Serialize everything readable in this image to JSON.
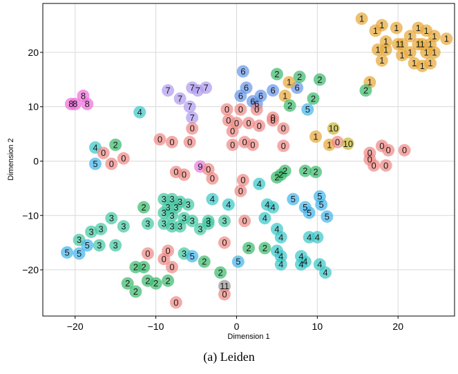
{
  "caption": "(a) Leiden",
  "chart_data": {
    "type": "scatter",
    "xlabel": "Dimension 1",
    "ylabel": "Dimension 2",
    "xlim": [
      -24,
      27
    ],
    "ylim": [
      -28.5,
      29
    ],
    "xticks": [
      -20,
      -10,
      0,
      10,
      20
    ],
    "yticks": [
      -20,
      -10,
      0,
      10,
      20
    ],
    "x_tick_labels": [
      "−20",
      "−10",
      "0",
      "10",
      "20"
    ],
    "y_tick_labels": [
      "−20",
      "−10",
      "0",
      "10",
      "20"
    ],
    "grid": true,
    "legend": "none",
    "cluster_colors": {
      "0": "#ef8a87",
      "1": "#e6a93a",
      "2": "#3dbb6d",
      "3": "#45c9a4",
      "4": "#3cc7c9",
      "5": "#45b6ea",
      "6": "#6a98ea",
      "7": "#b29cf0",
      "8": "#ee6fd9",
      "9": "#e77ce0",
      "10": "#c9b83a"
    },
    "points": [
      {
        "x": 15.5,
        "y": 26.2,
        "label": "1"
      },
      {
        "x": 17.2,
        "y": 24.0,
        "label": "1"
      },
      {
        "x": 18.0,
        "y": 25.0,
        "label": "1"
      },
      {
        "x": 19.8,
        "y": 24.5,
        "label": "1"
      },
      {
        "x": 22.5,
        "y": 24.5,
        "label": "1"
      },
      {
        "x": 23.5,
        "y": 24.0,
        "label": "1"
      },
      {
        "x": 21.5,
        "y": 23.0,
        "label": "1"
      },
      {
        "x": 24.5,
        "y": 23.0,
        "label": "1"
      },
      {
        "x": 26.0,
        "y": 22.5,
        "label": "1"
      },
      {
        "x": 18.5,
        "y": 22.0,
        "label": "1"
      },
      {
        "x": 20.0,
        "y": 21.5,
        "label": "1"
      },
      {
        "x": 20.5,
        "y": 21.5,
        "label": "1"
      },
      {
        "x": 22.5,
        "y": 21.5,
        "label": "1"
      },
      {
        "x": 23.0,
        "y": 21.5,
        "label": "1"
      },
      {
        "x": 24.0,
        "y": 21.5,
        "label": "1"
      },
      {
        "x": 17.5,
        "y": 20.5,
        "label": "1"
      },
      {
        "x": 18.5,
        "y": 20.5,
        "label": "1"
      },
      {
        "x": 21.5,
        "y": 20.0,
        "label": "1"
      },
      {
        "x": 23.5,
        "y": 20.0,
        "label": "1"
      },
      {
        "x": 24.5,
        "y": 20.0,
        "label": "1"
      },
      {
        "x": 20.5,
        "y": 19.5,
        "label": "1"
      },
      {
        "x": 18.0,
        "y": 18.5,
        "label": "1"
      },
      {
        "x": 22.0,
        "y": 18.0,
        "label": "1"
      },
      {
        "x": 23.0,
        "y": 17.5,
        "label": "1"
      },
      {
        "x": 24.0,
        "y": 18.0,
        "label": "1"
      },
      {
        "x": 16.5,
        "y": 14.5,
        "label": "1"
      },
      {
        "x": 0.8,
        "y": 16.5,
        "label": "6"
      },
      {
        "x": 1.2,
        "y": 13.5,
        "label": "6"
      },
      {
        "x": 0.5,
        "y": 12.0,
        "label": "6"
      },
      {
        "x": 2.5,
        "y": 10.5,
        "label": "6"
      },
      {
        "x": 3.0,
        "y": 12.0,
        "label": "6"
      },
      {
        "x": 4.5,
        "y": 13.0,
        "label": "6"
      },
      {
        "x": 7.5,
        "y": 13.5,
        "label": "6"
      },
      {
        "x": 2.0,
        "y": 11.0,
        "label": "6"
      },
      {
        "x": 8.8,
        "y": 9.5,
        "label": "5"
      },
      {
        "x": 6.0,
        "y": 12.0,
        "label": "1"
      },
      {
        "x": 5.0,
        "y": 16.0,
        "label": "2"
      },
      {
        "x": 7.8,
        "y": 15.5,
        "label": "2"
      },
      {
        "x": 10.3,
        "y": 15.0,
        "label": "2"
      },
      {
        "x": 6.5,
        "y": 14.5,
        "label": "1"
      },
      {
        "x": 9.5,
        "y": 11.5,
        "label": "2"
      },
      {
        "x": 6.6,
        "y": 10.2,
        "label": "2"
      },
      {
        "x": 16.0,
        "y": 13.0,
        "label": "2"
      },
      {
        "x": -20.5,
        "y": 10.5,
        "label": "8"
      },
      {
        "x": -20.0,
        "y": 10.5,
        "label": "8"
      },
      {
        "x": -19.0,
        "y": 12.0,
        "label": "8"
      },
      {
        "x": -18.5,
        "y": 10.5,
        "label": "8"
      },
      {
        "x": -12.0,
        "y": 9.0,
        "label": "4"
      },
      {
        "x": -8.5,
        "y": 13.0,
        "label": "7"
      },
      {
        "x": -5.5,
        "y": 13.5,
        "label": "7"
      },
      {
        "x": -4.8,
        "y": 13.0,
        "label": "7"
      },
      {
        "x": -3.8,
        "y": 13.5,
        "label": "7"
      },
      {
        "x": -7.0,
        "y": 11.5,
        "label": "7"
      },
      {
        "x": -5.8,
        "y": 10.0,
        "label": "7"
      },
      {
        "x": -5.5,
        "y": 8.0,
        "label": "7"
      },
      {
        "x": -5.5,
        "y": 6.0,
        "label": "0"
      },
      {
        "x": -5.8,
        "y": 3.5,
        "label": "0"
      },
      {
        "x": -9.5,
        "y": 4.0,
        "label": "0"
      },
      {
        "x": -8.0,
        "y": 3.5,
        "label": "0"
      },
      {
        "x": -1.2,
        "y": 9.5,
        "label": "0"
      },
      {
        "x": 0.5,
        "y": 9.5,
        "label": "0"
      },
      {
        "x": 2.5,
        "y": 9.5,
        "label": "0"
      },
      {
        "x": 4.5,
        "y": 8.0,
        "label": "0"
      },
      {
        "x": 5.8,
        "y": 6.0,
        "label": "0"
      },
      {
        "x": -1.0,
        "y": 7.5,
        "label": "0"
      },
      {
        "x": 0.0,
        "y": 7.0,
        "label": "0"
      },
      {
        "x": 1.5,
        "y": 7.0,
        "label": "0"
      },
      {
        "x": 2.8,
        "y": 6.5,
        "label": "0"
      },
      {
        "x": -0.5,
        "y": 5.5,
        "label": "0"
      },
      {
        "x": 4.5,
        "y": 7.5,
        "label": "0"
      },
      {
        "x": -0.5,
        "y": 3.0,
        "label": "0"
      },
      {
        "x": 1.0,
        "y": 3.5,
        "label": "0"
      },
      {
        "x": 2.0,
        "y": 3.0,
        "label": "0"
      },
      {
        "x": 5.8,
        "y": 2.8,
        "label": "0"
      },
      {
        "x": 9.8,
        "y": 4.5,
        "label": "1"
      },
      {
        "x": 12.0,
        "y": 6.0,
        "label": "10"
      },
      {
        "x": 11.5,
        "y": 3.0,
        "label": "1"
      },
      {
        "x": 12.5,
        "y": 3.5,
        "label": "0"
      },
      {
        "x": 13.8,
        "y": 3.2,
        "label": "10"
      },
      {
        "x": 16.5,
        "y": 1.5,
        "label": "0"
      },
      {
        "x": 16.5,
        "y": 0.3,
        "label": "0"
      },
      {
        "x": 17.0,
        "y": -0.8,
        "label": "0"
      },
      {
        "x": 18.0,
        "y": 2.8,
        "label": "0"
      },
      {
        "x": 18.8,
        "y": 2.0,
        "label": "0"
      },
      {
        "x": 20.8,
        "y": 2.0,
        "label": "0"
      },
      {
        "x": 18.5,
        "y": -0.8,
        "label": "0"
      },
      {
        "x": -17.5,
        "y": 2.5,
        "label": "4"
      },
      {
        "x": -16.5,
        "y": 1.5,
        "label": "0"
      },
      {
        "x": -15.0,
        "y": 3.0,
        "label": "2"
      },
      {
        "x": -14.0,
        "y": 0.5,
        "label": "0"
      },
      {
        "x": -17.5,
        "y": -0.5,
        "label": "5"
      },
      {
        "x": -15.5,
        "y": -0.5,
        "label": "0"
      },
      {
        "x": -7.5,
        "y": -2.0,
        "label": "0"
      },
      {
        "x": -6.5,
        "y": -2.5,
        "label": "0"
      },
      {
        "x": -4.5,
        "y": -1.0,
        "label": "9"
      },
      {
        "x": -3.5,
        "y": -1.5,
        "label": "0"
      },
      {
        "x": -3.0,
        "y": -3.2,
        "label": "0"
      },
      {
        "x": 0.8,
        "y": -3.5,
        "label": "0"
      },
      {
        "x": 2.8,
        "y": -4.2,
        "label": "4"
      },
      {
        "x": 0.5,
        "y": -5.5,
        "label": "0"
      },
      {
        "x": 5.0,
        "y": -3.0,
        "label": "2"
      },
      {
        "x": 5.5,
        "y": -2.5,
        "label": "2"
      },
      {
        "x": 6.0,
        "y": -1.8,
        "label": "2"
      },
      {
        "x": 8.5,
        "y": -1.8,
        "label": "2"
      },
      {
        "x": 9.8,
        "y": -2.0,
        "label": "2"
      },
      {
        "x": -11.5,
        "y": -8.5,
        "label": "2"
      },
      {
        "x": -9.0,
        "y": -7.0,
        "label": "3"
      },
      {
        "x": -8.0,
        "y": -7.0,
        "label": "3"
      },
      {
        "x": -7.0,
        "y": -7.5,
        "label": "3"
      },
      {
        "x": -8.5,
        "y": -8.5,
        "label": "3"
      },
      {
        "x": -7.5,
        "y": -8.5,
        "label": "3"
      },
      {
        "x": -6.0,
        "y": -8.0,
        "label": "3"
      },
      {
        "x": -9.0,
        "y": -9.5,
        "label": "3"
      },
      {
        "x": -8.0,
        "y": -10.0,
        "label": "3"
      },
      {
        "x": -6.5,
        "y": -10.5,
        "label": "3"
      },
      {
        "x": -5.5,
        "y": -11.0,
        "label": "3"
      },
      {
        "x": -3.5,
        "y": -11.0,
        "label": "3"
      },
      {
        "x": -1.5,
        "y": -11.0,
        "label": "3"
      },
      {
        "x": -11.0,
        "y": -11.5,
        "label": "3"
      },
      {
        "x": -9.0,
        "y": -11.5,
        "label": "3"
      },
      {
        "x": -8.0,
        "y": -12.0,
        "label": "3"
      },
      {
        "x": -7.0,
        "y": -12.0,
        "label": "3"
      },
      {
        "x": -4.5,
        "y": -12.5,
        "label": "3"
      },
      {
        "x": -3.5,
        "y": -11.5,
        "label": "3"
      },
      {
        "x": -3.0,
        "y": -7.0,
        "label": "4"
      },
      {
        "x": -1.0,
        "y": -8.0,
        "label": "4"
      },
      {
        "x": 1.0,
        "y": -11.0,
        "label": "0"
      },
      {
        "x": -14.0,
        "y": -12.0,
        "label": "3"
      },
      {
        "x": -15.5,
        "y": -10.5,
        "label": "3"
      },
      {
        "x": -16.8,
        "y": -12.5,
        "label": "3"
      },
      {
        "x": -18.0,
        "y": -13.0,
        "label": "3"
      },
      {
        "x": -19.5,
        "y": -14.5,
        "label": "3"
      },
      {
        "x": -18.5,
        "y": -15.5,
        "label": "5"
      },
      {
        "x": -17.0,
        "y": -15.5,
        "label": "3"
      },
      {
        "x": -15.0,
        "y": -15.5,
        "label": "3"
      },
      {
        "x": -21.0,
        "y": -16.8,
        "label": "5"
      },
      {
        "x": -19.5,
        "y": -17.0,
        "label": "5"
      },
      {
        "x": 3.8,
        "y": -8.0,
        "label": "4"
      },
      {
        "x": 4.5,
        "y": -8.5,
        "label": "4"
      },
      {
        "x": 3.5,
        "y": -10.5,
        "label": "4"
      },
      {
        "x": 7.0,
        "y": -7.0,
        "label": "5"
      },
      {
        "x": 8.5,
        "y": -8.5,
        "label": "5"
      },
      {
        "x": 9.0,
        "y": -9.5,
        "label": "5"
      },
      {
        "x": 10.3,
        "y": -6.5,
        "label": "5"
      },
      {
        "x": 10.5,
        "y": -8.0,
        "label": "5"
      },
      {
        "x": 11.2,
        "y": -10.2,
        "label": "5"
      },
      {
        "x": 5.0,
        "y": -12.5,
        "label": "4"
      },
      {
        "x": 5.5,
        "y": -14.0,
        "label": "4"
      },
      {
        "x": 9.0,
        "y": -14.0,
        "label": "4"
      },
      {
        "x": 10.0,
        "y": -14.0,
        "label": "4"
      },
      {
        "x": 1.5,
        "y": -16.0,
        "label": "2"
      },
      {
        "x": 3.5,
        "y": -16.0,
        "label": "2"
      },
      {
        "x": 5.0,
        "y": -16.5,
        "label": "4"
      },
      {
        "x": 5.5,
        "y": -17.5,
        "label": "4"
      },
      {
        "x": 8.0,
        "y": -17.5,
        "label": "4"
      },
      {
        "x": 8.5,
        "y": -18.5,
        "label": "4"
      },
      {
        "x": 5.5,
        "y": -19.0,
        "label": "4"
      },
      {
        "x": 8.0,
        "y": -19.0,
        "label": "4"
      },
      {
        "x": 10.3,
        "y": -19.0,
        "label": "4"
      },
      {
        "x": 11.0,
        "y": -20.5,
        "label": "4"
      },
      {
        "x": 0.2,
        "y": -18.5,
        "label": "5"
      },
      {
        "x": -1.5,
        "y": -15.0,
        "label": "0"
      },
      {
        "x": -11.0,
        "y": -17.0,
        "label": "0"
      },
      {
        "x": -8.5,
        "y": -16.5,
        "label": "0"
      },
      {
        "x": -9.0,
        "y": -18.0,
        "label": "0"
      },
      {
        "x": -8.0,
        "y": -19.5,
        "label": "0"
      },
      {
        "x": -6.5,
        "y": -17.0,
        "label": "3"
      },
      {
        "x": -5.5,
        "y": -17.5,
        "label": "5"
      },
      {
        "x": -4.0,
        "y": -18.5,
        "label": "2"
      },
      {
        "x": -12.5,
        "y": -19.5,
        "label": "2"
      },
      {
        "x": -11.5,
        "y": -19.5,
        "label": "2"
      },
      {
        "x": -2.0,
        "y": -20.5,
        "label": "2"
      },
      {
        "x": -13.5,
        "y": -22.5,
        "label": "2"
      },
      {
        "x": -11.0,
        "y": -22.0,
        "label": "2"
      },
      {
        "x": -10.0,
        "y": -22.5,
        "label": "2"
      },
      {
        "x": -8.5,
        "y": -22.0,
        "label": "2"
      },
      {
        "x": -12.5,
        "y": -24.0,
        "label": "2"
      },
      {
        "x": -7.5,
        "y": -26.0,
        "label": "0"
      },
      {
        "x": -1.5,
        "y": -23.0,
        "label": "11"
      },
      {
        "x": -1.5,
        "y": -24.5,
        "label": "0"
      }
    ]
  }
}
